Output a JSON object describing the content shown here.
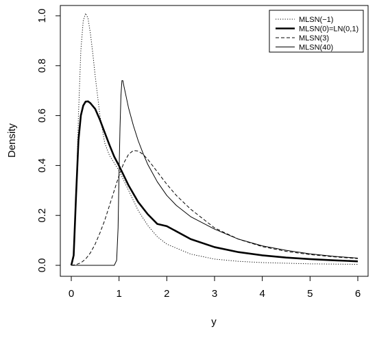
{
  "chart_data": {
    "type": "line",
    "title": "",
    "xlabel": "y",
    "ylabel": "Density",
    "xlim": [
      0,
      6
    ],
    "ylim": [
      0,
      1.0
    ],
    "x_ticks": [
      0,
      1,
      2,
      3,
      4,
      5,
      6
    ],
    "x_tick_labels": [
      "0",
      "1",
      "2",
      "3",
      "4",
      "5",
      "6"
    ],
    "y_ticks": [
      0.0,
      0.2,
      0.4,
      0.6,
      0.8,
      1.0
    ],
    "y_tick_labels": [
      "0.0",
      "0.2",
      "0.4",
      "0.6",
      "0.8",
      "1.0"
    ],
    "grid": false,
    "legend_position": "top-right",
    "series": [
      {
        "name": "MLSN(−1)",
        "line_style": "dotted",
        "line_weight": "thin",
        "x": [
          0.0,
          0.05,
          0.1,
          0.15,
          0.2,
          0.25,
          0.3,
          0.35,
          0.4,
          0.45,
          0.5,
          0.6,
          0.7,
          0.8,
          0.9,
          1.0,
          1.2,
          1.4,
          1.6,
          1.8,
          2.0,
          2.5,
          3.0,
          3.5,
          4.0,
          5.0,
          6.0
        ],
        "y": [
          0.0,
          0.03,
          0.26,
          0.6,
          0.86,
          0.98,
          1.01,
          0.99,
          0.93,
          0.85,
          0.76,
          0.6,
          0.49,
          0.44,
          0.41,
          0.38,
          0.3,
          0.22,
          0.16,
          0.115,
          0.085,
          0.045,
          0.025,
          0.016,
          0.011,
          0.006,
          0.004
        ]
      },
      {
        "name": "MLSN(0)=LN(0,1)",
        "line_style": "solid",
        "line_weight": "thick",
        "x": [
          0.0,
          0.05,
          0.1,
          0.15,
          0.2,
          0.25,
          0.3,
          0.35,
          0.4,
          0.5,
          0.6,
          0.7,
          0.8,
          0.9,
          1.0,
          1.2,
          1.4,
          1.6,
          1.8,
          2.0,
          2.5,
          3.0,
          3.5,
          4.0,
          4.5,
          5.0,
          5.5,
          6.0
        ],
        "y": [
          0.0,
          0.04,
          0.28,
          0.5,
          0.6,
          0.64,
          0.656,
          0.657,
          0.65,
          0.627,
          0.583,
          0.532,
          0.482,
          0.435,
          0.399,
          0.32,
          0.254,
          0.205,
          0.166,
          0.157,
          0.105,
          0.073,
          0.053,
          0.04,
          0.031,
          0.025,
          0.02,
          0.016
        ]
      },
      {
        "name": "MLSN(3)",
        "line_style": "dashed",
        "line_weight": "thin",
        "x": [
          0.0,
          0.1,
          0.2,
          0.3,
          0.4,
          0.5,
          0.6,
          0.7,
          0.8,
          0.9,
          1.0,
          1.1,
          1.2,
          1.3,
          1.4,
          1.5,
          1.6,
          1.8,
          2.0,
          2.2,
          2.5,
          3.0,
          3.5,
          4.0,
          4.5,
          5.0,
          5.5,
          6.0
        ],
        "y": [
          0.0,
          0.003,
          0.01,
          0.025,
          0.05,
          0.085,
          0.13,
          0.18,
          0.24,
          0.3,
          0.36,
          0.41,
          0.445,
          0.46,
          0.458,
          0.445,
          0.425,
          0.375,
          0.325,
          0.28,
          0.225,
          0.15,
          0.105,
          0.075,
          0.056,
          0.043,
          0.034,
          0.027
        ]
      },
      {
        "name": "MLSN(40)",
        "line_style": "solid",
        "line_weight": "thin",
        "x": [
          0.0,
          0.5,
          0.9,
          0.95,
          0.98,
          1.0,
          1.02,
          1.04,
          1.06,
          1.08,
          1.1,
          1.15,
          1.2,
          1.3,
          1.4,
          1.5,
          1.6,
          1.8,
          2.0,
          2.2,
          2.5,
          3.0,
          3.5,
          4.0,
          4.5,
          5.0,
          5.5,
          6.0
        ],
        "y": [
          0.0,
          0.0,
          0.0,
          0.02,
          0.15,
          0.37,
          0.55,
          0.68,
          0.74,
          0.74,
          0.72,
          0.675,
          0.63,
          0.56,
          0.5,
          0.45,
          0.405,
          0.335,
          0.28,
          0.24,
          0.195,
          0.145,
          0.105,
          0.078,
          0.06,
          0.046,
          0.036,
          0.029
        ]
      }
    ]
  }
}
